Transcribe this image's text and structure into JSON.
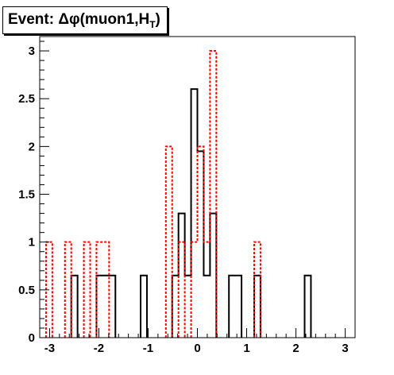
{
  "chart_data": {
    "type": "histogram",
    "title": "Event: Δφ(muon1,H_T)",
    "xlim": [
      -3.2,
      3.2
    ],
    "ylim": [
      0,
      3.15
    ],
    "xticks": [
      "-3",
      "-2",
      "-1",
      "0",
      "1",
      "2",
      "3"
    ],
    "yticks": [
      "0",
      "0.5",
      "1",
      "1.5",
      "2",
      "2.5",
      "3"
    ],
    "bin_width": 0.128,
    "series": [
      {
        "style": "solid",
        "color": "#000000",
        "bins": [
          [
            -2.56,
            -2.432,
            0.65
          ],
          [
            -2.048,
            -1.664,
            0.65
          ],
          [
            -1.152,
            -1.024,
            0.65
          ],
          [
            -0.512,
            -0.384,
            0.65
          ],
          [
            -0.384,
            -0.256,
            1.3
          ],
          [
            -0.256,
            -0.128,
            0.65
          ],
          [
            -0.128,
            0.0,
            2.6
          ],
          [
            0.0,
            0.128,
            1.95
          ],
          [
            0.128,
            0.256,
            0.65
          ],
          [
            0.256,
            0.384,
            1.3
          ],
          [
            0.64,
            0.896,
            0.65
          ],
          [
            1.152,
            1.28,
            0.65
          ],
          [
            2.176,
            2.304,
            0.65
          ]
        ]
      },
      {
        "style": "dashed",
        "color": "#ff0000",
        "bins": [
          [
            -3.072,
            -2.944,
            1
          ],
          [
            -2.688,
            -2.56,
            1
          ],
          [
            -2.304,
            -2.176,
            1
          ],
          [
            -2.048,
            -1.792,
            1
          ],
          [
            -0.64,
            -0.512,
            2
          ],
          [
            -0.384,
            -0.256,
            1
          ],
          [
            -0.128,
            0.0,
            1
          ],
          [
            0.0,
            0.128,
            2
          ],
          [
            0.128,
            0.256,
            1
          ],
          [
            0.256,
            0.384,
            3
          ],
          [
            1.152,
            1.28,
            1
          ]
        ]
      }
    ]
  }
}
